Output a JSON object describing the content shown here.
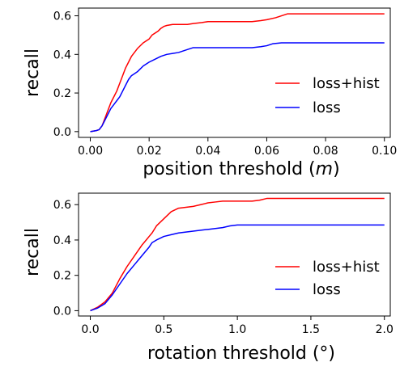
{
  "chart_data": [
    {
      "type": "line",
      "xlabel": "position threshold (",
      "xlabel_italic": "m",
      "xlabel_suffix": ")",
      "ylabel": "recall",
      "xlim": [
        -0.004,
        0.102
      ],
      "ylim": [
        -0.03,
        0.64
      ],
      "xticks": [
        0.0,
        0.02,
        0.04,
        0.06,
        0.08,
        0.1
      ],
      "xtick_labels": [
        "0.00",
        "0.02",
        "0.04",
        "0.06",
        "0.08",
        "0.10"
      ],
      "yticks": [
        0.0,
        0.2,
        0.4,
        0.6
      ],
      "ytick_labels": [
        "0.0",
        "0.2",
        "0.4",
        "0.6"
      ],
      "grid": false,
      "legend_position": "center-right",
      "series": [
        {
          "name": "loss+hist",
          "color": "#ff0000",
          "x": [
            0.0,
            0.002,
            0.003,
            0.004,
            0.005,
            0.006,
            0.007,
            0.008,
            0.009,
            0.01,
            0.011,
            0.012,
            0.013,
            0.014,
            0.015,
            0.016,
            0.018,
            0.02,
            0.021,
            0.022,
            0.023,
            0.024,
            0.025,
            0.026,
            0.028,
            0.03,
            0.033,
            0.035,
            0.038,
            0.04,
            0.045,
            0.05,
            0.055,
            0.058,
            0.06,
            0.063,
            0.065,
            0.067,
            0.07,
            0.075,
            0.08,
            0.085,
            0.09,
            0.095,
            0.1
          ],
          "y": [
            0.0,
            0.005,
            0.01,
            0.03,
            0.07,
            0.11,
            0.15,
            0.18,
            0.21,
            0.25,
            0.29,
            0.33,
            0.36,
            0.39,
            0.41,
            0.43,
            0.46,
            0.48,
            0.5,
            0.51,
            0.52,
            0.535,
            0.545,
            0.55,
            0.555,
            0.555,
            0.555,
            0.56,
            0.565,
            0.57,
            0.57,
            0.57,
            0.57,
            0.575,
            0.58,
            0.59,
            0.6,
            0.61,
            0.61,
            0.61,
            0.61,
            0.61,
            0.61,
            0.61,
            0.61
          ]
        },
        {
          "name": "loss",
          "color": "#0000ff",
          "x": [
            0.0,
            0.002,
            0.003,
            0.004,
            0.005,
            0.006,
            0.007,
            0.008,
            0.009,
            0.01,
            0.011,
            0.012,
            0.013,
            0.014,
            0.015,
            0.016,
            0.018,
            0.02,
            0.022,
            0.024,
            0.026,
            0.028,
            0.03,
            0.033,
            0.035,
            0.04,
            0.045,
            0.05,
            0.055,
            0.058,
            0.06,
            0.062,
            0.065,
            0.07,
            0.08,
            0.09,
            0.1
          ],
          "y": [
            0.0,
            0.005,
            0.01,
            0.03,
            0.06,
            0.09,
            0.12,
            0.14,
            0.16,
            0.18,
            0.21,
            0.24,
            0.27,
            0.29,
            0.3,
            0.31,
            0.34,
            0.36,
            0.375,
            0.39,
            0.4,
            0.405,
            0.41,
            0.425,
            0.435,
            0.435,
            0.435,
            0.435,
            0.435,
            0.44,
            0.445,
            0.455,
            0.46,
            0.46,
            0.46,
            0.46,
            0.46
          ]
        }
      ]
    },
    {
      "type": "line",
      "xlabel": "rotation threshold (°)",
      "ylabel": "recall",
      "xlim": [
        -0.08,
        2.04
      ],
      "ylim": [
        -0.03,
        0.665
      ],
      "xticks": [
        0.0,
        0.5,
        1.0,
        1.5,
        2.0
      ],
      "xtick_labels": [
        "0.0",
        "0.5",
        "1.0",
        "1.5",
        "2.0"
      ],
      "yticks": [
        0.0,
        0.2,
        0.4,
        0.6
      ],
      "ytick_labels": [
        "0.0",
        "0.2",
        "0.4",
        "0.6"
      ],
      "grid": false,
      "legend_position": "center-right",
      "series": [
        {
          "name": "loss+hist",
          "color": "#ff0000",
          "x": [
            0.0,
            0.05,
            0.1,
            0.15,
            0.2,
            0.25,
            0.3,
            0.35,
            0.38,
            0.4,
            0.42,
            0.45,
            0.5,
            0.55,
            0.6,
            0.65,
            0.7,
            0.75,
            0.8,
            0.85,
            0.9,
            1.0,
            1.1,
            1.15,
            1.2,
            1.3,
            1.5,
            1.7,
            2.0
          ],
          "y": [
            0.0,
            0.02,
            0.05,
            0.1,
            0.18,
            0.25,
            0.31,
            0.37,
            0.4,
            0.42,
            0.44,
            0.48,
            0.52,
            0.56,
            0.58,
            0.585,
            0.59,
            0.6,
            0.61,
            0.615,
            0.62,
            0.62,
            0.62,
            0.625,
            0.635,
            0.635,
            0.635,
            0.635,
            0.635
          ]
        },
        {
          "name": "loss",
          "color": "#0000ff",
          "x": [
            0.0,
            0.05,
            0.1,
            0.15,
            0.2,
            0.25,
            0.3,
            0.35,
            0.4,
            0.42,
            0.45,
            0.5,
            0.55,
            0.6,
            0.65,
            0.7,
            0.75,
            0.8,
            0.85,
            0.9,
            0.95,
            1.0,
            1.2,
            1.5,
            2.0
          ],
          "y": [
            0.0,
            0.015,
            0.04,
            0.09,
            0.15,
            0.21,
            0.26,
            0.31,
            0.36,
            0.385,
            0.4,
            0.42,
            0.43,
            0.44,
            0.445,
            0.45,
            0.455,
            0.46,
            0.465,
            0.47,
            0.48,
            0.485,
            0.485,
            0.485,
            0.485
          ]
        }
      ]
    }
  ]
}
